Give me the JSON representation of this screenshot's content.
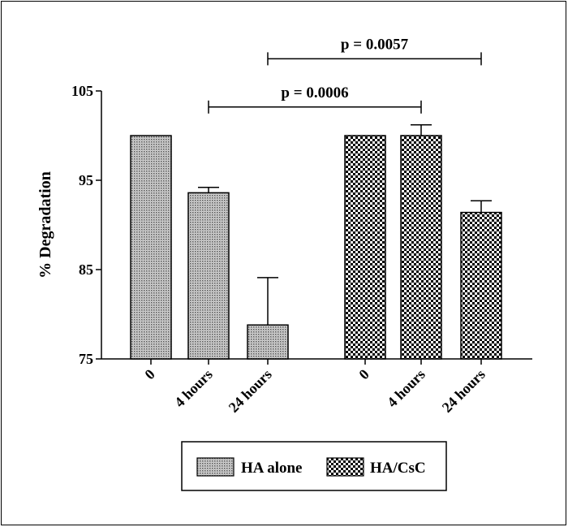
{
  "chart_data": {
    "type": "bar",
    "ylabel": "% Degradation",
    "xlabel": "",
    "title": "",
    "ylim": [
      75,
      105
    ],
    "yticks": [
      75,
      85,
      95,
      105
    ],
    "grid": false,
    "legend_placement": "bottom-center",
    "groups": [
      {
        "name": "HA alone",
        "pattern": "dotted",
        "categories": [
          "0",
          "4 hours",
          "24 hours"
        ],
        "values": [
          100,
          93.6,
          78.8
        ],
        "errors": [
          0,
          0.6,
          5.3
        ]
      },
      {
        "name": "HA/CsC",
        "pattern": "checkered",
        "categories": [
          "0",
          "4 hours",
          "24 hours"
        ],
        "values": [
          100,
          100,
          91.4
        ],
        "errors": [
          0,
          1.2,
          1.3
        ]
      }
    ],
    "annotations": [
      {
        "label": "p = 0.0006",
        "from": [
          "HA alone",
          "4 hours"
        ],
        "to": [
          "HA/CsC",
          "4 hours"
        ],
        "y": 103.2
      },
      {
        "label": "p = 0.0057",
        "from": [
          "HA alone",
          "24 hours"
        ],
        "to": [
          "HA/CsC",
          "24 hours"
        ],
        "y": 108.6
      }
    ],
    "colors": {
      "axis": "#000000",
      "bar_fill_light": "#bdbdbd",
      "bar_fill_dark": "#000000"
    }
  }
}
